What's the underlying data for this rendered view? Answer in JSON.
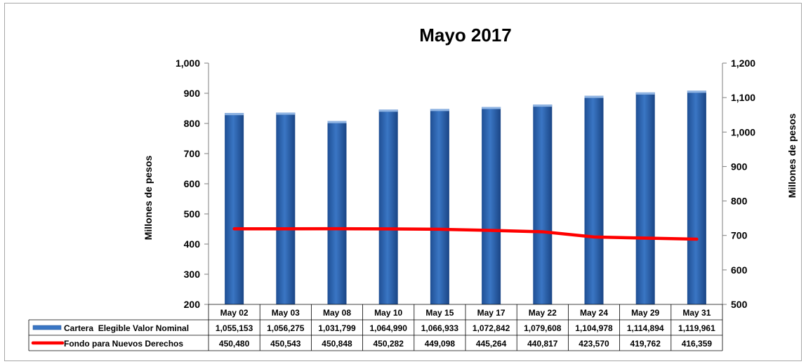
{
  "chart_data": {
    "type": "bar",
    "title": "Mayo 2017",
    "categories": [
      "May 02",
      "May 03",
      "May 08",
      "May 10",
      "May 15",
      "May 17",
      "May 22",
      "May 24",
      "May 29",
      "May 31"
    ],
    "y_left": {
      "label": "Millones de pesos",
      "min": 200,
      "max": 1000,
      "step": 100,
      "tick_labels": [
        "200",
        "300",
        "400",
        "500",
        "600",
        "700",
        "800",
        "900",
        "1,000"
      ]
    },
    "y_right": {
      "label": "Millones de pesos",
      "min": 500,
      "max": 1200,
      "step": 100,
      "tick_labels": [
        "500",
        "600",
        "700",
        "800",
        "900",
        "1,000",
        "1,100",
        "1,200"
      ]
    },
    "series": [
      {
        "name": "Cartera  Elegible Valor Nominal",
        "type": "bar",
        "axis": "right",
        "color": "#3a76c4",
        "values": [
          1055153,
          1056275,
          1031799,
          1064990,
          1066933,
          1072842,
          1079608,
          1104978,
          1114894,
          1119961
        ],
        "labels": [
          "1,055,153",
          "1,056,275",
          "1,031,799",
          "1,064,990",
          "1,066,933",
          "1,072,842",
          "1,079,608",
          "1,104,978",
          "1,114,894",
          "1,119,961"
        ]
      },
      {
        "name": "Fondo para Nuevos Derechos",
        "type": "line",
        "axis": "left",
        "color": "#ff0000",
        "values": [
          450480,
          450543,
          450848,
          450282,
          449098,
          445264,
          440817,
          423570,
          419762,
          416359
        ],
        "labels": [
          "450,480",
          "450,543",
          "450,848",
          "450,282",
          "449,098",
          "445,264",
          "440,817",
          "423,570",
          "419,762",
          "416,359"
        ]
      }
    ],
    "grid": false,
    "legend": "data-table"
  }
}
